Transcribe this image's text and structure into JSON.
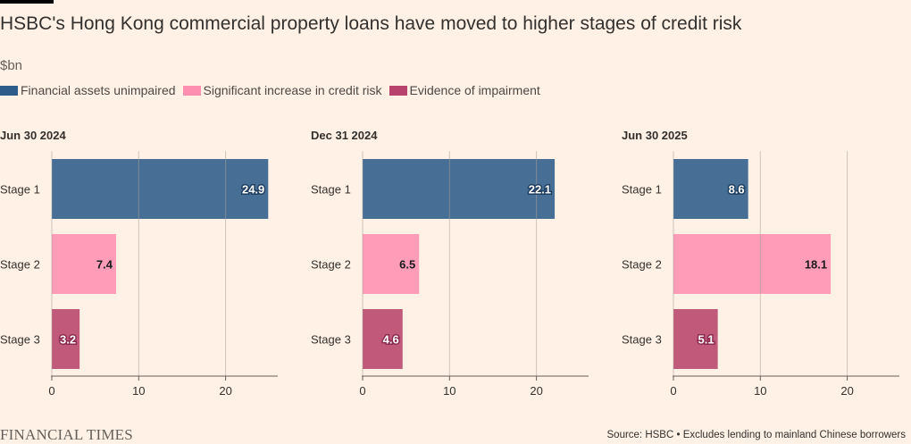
{
  "header": {
    "title": "HSBC's Hong Kong commercial property loans have moved to higher stages of credit risk",
    "unit": "$bn"
  },
  "legend": [
    {
      "label": "Financial assets unimpaired",
      "color": "#2e5c8a"
    },
    {
      "label": "Significant increase in credit risk",
      "color": "#ff8fb1"
    },
    {
      "label": "Evidence of impairment",
      "color": "#b8436c"
    }
  ],
  "footer": {
    "brand": "FINANCIAL TIMES",
    "source": "Source: HSBC • Excludes lending to mainland Chinese borrowers"
  },
  "chart_data": [
    {
      "type": "bar",
      "orientation": "horizontal",
      "title": "Jun 30 2024",
      "categories": [
        "Stage 1",
        "Stage 2",
        "Stage 3"
      ],
      "values": [
        24.9,
        7.4,
        3.2
      ],
      "xlim": [
        0,
        26
      ],
      "xticks": [
        0,
        10,
        20
      ],
      "grid": true
    },
    {
      "type": "bar",
      "orientation": "horizontal",
      "title": "Dec 31 2024",
      "categories": [
        "Stage 1",
        "Stage 2",
        "Stage 3"
      ],
      "values": [
        22.1,
        6.5,
        4.6
      ],
      "xlim": [
        0,
        26
      ],
      "xticks": [
        0,
        10,
        20
      ],
      "grid": true
    },
    {
      "type": "bar",
      "orientation": "horizontal",
      "title": "Jun 30 2025",
      "categories": [
        "Stage 1",
        "Stage 2",
        "Stage 3"
      ],
      "values": [
        8.6,
        18.1,
        5.1
      ],
      "xlim": [
        0,
        26
      ],
      "xticks": [
        0,
        10,
        20
      ],
      "grid": true
    }
  ]
}
